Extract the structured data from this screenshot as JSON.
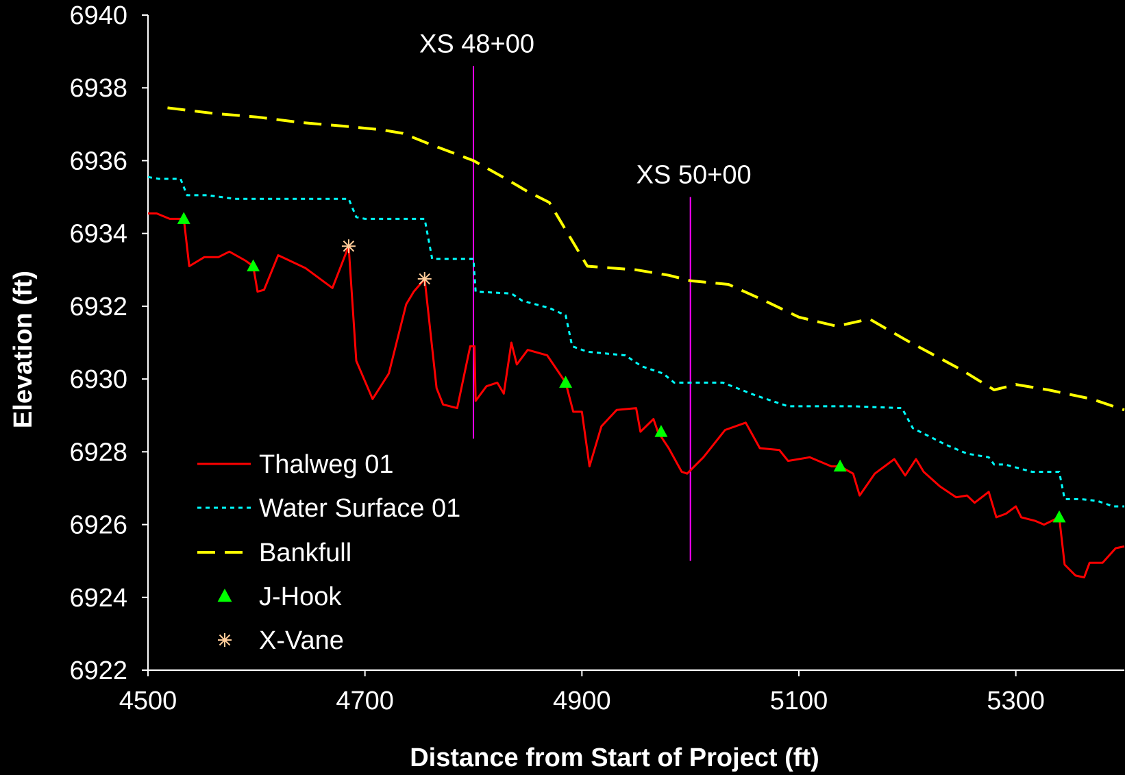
{
  "chart_data": {
    "type": "line",
    "title": "",
    "xlabel": "Distance from Start of Project (ft)",
    "ylabel": "Elevation (ft)",
    "xlim": [
      4500,
      5400
    ],
    "ylim": [
      6922,
      6940
    ],
    "x_ticks": [
      4500,
      4700,
      4900,
      5100,
      5300
    ],
    "y_ticks": [
      6922,
      6924,
      6926,
      6928,
      6930,
      6932,
      6934,
      6936,
      6938,
      6940
    ],
    "x_tick_labels": [
      "4500",
      "4700",
      "4900",
      "5100",
      "5300"
    ],
    "y_tick_labels": [
      "6922",
      "6924",
      "6926",
      "6928",
      "6930",
      "6932",
      "6934",
      "6936",
      "6938",
      "6940"
    ],
    "grid": false,
    "legend_position": "bottom-left",
    "background": "#000000",
    "series": [
      {
        "name": "Thalweg 01",
        "style": "solid",
        "color": "#ff0000",
        "points": [
          [
            4500,
            6934.55
          ],
          [
            4508,
            6934.55
          ],
          [
            4520,
            6934.4
          ],
          [
            4533,
            6934.4
          ],
          [
            4538,
            6933.1
          ],
          [
            4552,
            6933.35
          ],
          [
            4565,
            6933.35
          ],
          [
            4575,
            6933.5
          ],
          [
            4590,
            6933.25
          ],
          [
            4597,
            6933.1
          ],
          [
            4601,
            6932.4
          ],
          [
            4607,
            6932.45
          ],
          [
            4620,
            6933.4
          ],
          [
            4645,
            6933.05
          ],
          [
            4670,
            6932.5
          ],
          [
            4685,
            6933.65
          ],
          [
            4692,
            6930.5
          ],
          [
            4707,
            6929.45
          ],
          [
            4722,
            6930.15
          ],
          [
            4738,
            6932.05
          ],
          [
            4745,
            6932.4
          ],
          [
            4755,
            6932.75
          ],
          [
            4766,
            6929.75
          ],
          [
            4772,
            6929.3
          ],
          [
            4785,
            6929.2
          ],
          [
            4797,
            6930.9
          ],
          [
            4801,
            6930.9
          ],
          [
            4802,
            6929.4
          ],
          [
            4812,
            6929.8
          ],
          [
            4822,
            6929.9
          ],
          [
            4828,
            6929.6
          ],
          [
            4835,
            6931.0
          ],
          [
            4840,
            6930.4
          ],
          [
            4850,
            6930.8
          ],
          [
            4868,
            6930.65
          ],
          [
            4885,
            6929.9
          ],
          [
            4892,
            6929.1
          ],
          [
            4900,
            6929.1
          ],
          [
            4907,
            6927.6
          ],
          [
            4918,
            6928.7
          ],
          [
            4932,
            6929.15
          ],
          [
            4950,
            6929.2
          ],
          [
            4954,
            6928.55
          ],
          [
            4966,
            6928.9
          ],
          [
            4970,
            6928.55
          ],
          [
            4980,
            6928.1
          ],
          [
            4992,
            6927.45
          ],
          [
            4997,
            6927.4
          ],
          [
            5012,
            6927.85
          ],
          [
            5032,
            6928.6
          ],
          [
            5051,
            6928.8
          ],
          [
            5064,
            6928.1
          ],
          [
            5082,
            6928.05
          ],
          [
            5090,
            6927.75
          ],
          [
            5110,
            6927.85
          ],
          [
            5130,
            6927.6
          ],
          [
            5138,
            6927.6
          ],
          [
            5150,
            6927.4
          ],
          [
            5156,
            6926.8
          ],
          [
            5170,
            6927.4
          ],
          [
            5188,
            6927.8
          ],
          [
            5198,
            6927.35
          ],
          [
            5208,
            6927.8
          ],
          [
            5215,
            6927.45
          ],
          [
            5230,
            6927.05
          ],
          [
            5245,
            6926.75
          ],
          [
            5255,
            6926.8
          ],
          [
            5262,
            6926.6
          ],
          [
            5275,
            6926.9
          ],
          [
            5282,
            6926.2
          ],
          [
            5291,
            6926.3
          ],
          [
            5300,
            6926.5
          ],
          [
            5305,
            6926.2
          ],
          [
            5318,
            6926.1
          ],
          [
            5326,
            6926.0
          ],
          [
            5340,
            6926.2
          ],
          [
            5345,
            6924.9
          ],
          [
            5355,
            6924.6
          ],
          [
            5363,
            6924.55
          ],
          [
            5368,
            6924.95
          ],
          [
            5380,
            6924.95
          ],
          [
            5392,
            6925.35
          ],
          [
            5400,
            6925.4
          ]
        ]
      },
      {
        "name": "Water Surface 01",
        "style": "dotted",
        "color": "#00ffff",
        "points": [
          [
            4500,
            6935.55
          ],
          [
            4510,
            6935.5
          ],
          [
            4530,
            6935.5
          ],
          [
            4536,
            6935.05
          ],
          [
            4555,
            6935.05
          ],
          [
            4580,
            6934.95
          ],
          [
            4620,
            6934.95
          ],
          [
            4675,
            6934.95
          ],
          [
            4685,
            6934.95
          ],
          [
            4692,
            6934.45
          ],
          [
            4700,
            6934.4
          ],
          [
            4730,
            6934.4
          ],
          [
            4755,
            6934.4
          ],
          [
            4762,
            6933.3
          ],
          [
            4790,
            6933.3
          ],
          [
            4800,
            6933.3
          ],
          [
            4802,
            6932.4
          ],
          [
            4835,
            6932.35
          ],
          [
            4845,
            6932.15
          ],
          [
            4870,
            6931.95
          ],
          [
            4885,
            6931.75
          ],
          [
            4891,
            6930.9
          ],
          [
            4905,
            6930.75
          ],
          [
            4940,
            6930.65
          ],
          [
            4955,
            6930.35
          ],
          [
            4975,
            6930.15
          ],
          [
            4985,
            6929.9
          ],
          [
            5030,
            6929.9
          ],
          [
            5060,
            6929.55
          ],
          [
            5080,
            6929.35
          ],
          [
            5090,
            6929.25
          ],
          [
            5150,
            6929.25
          ],
          [
            5195,
            6929.2
          ],
          [
            5205,
            6928.65
          ],
          [
            5235,
            6928.2
          ],
          [
            5255,
            6927.95
          ],
          [
            5275,
            6927.85
          ],
          [
            5280,
            6927.65
          ],
          [
            5290,
            6927.65
          ],
          [
            5315,
            6927.45
          ],
          [
            5340,
            6927.45
          ],
          [
            5345,
            6926.7
          ],
          [
            5360,
            6926.7
          ],
          [
            5375,
            6926.65
          ],
          [
            5390,
            6926.5
          ],
          [
            5400,
            6926.5
          ]
        ]
      },
      {
        "name": "Bankfull",
        "style": "dashed",
        "color": "#ffff00",
        "points": [
          [
            4518,
            6937.45
          ],
          [
            4560,
            6937.3
          ],
          [
            4600,
            6937.2
          ],
          [
            4640,
            6937.05
          ],
          [
            4680,
            6936.95
          ],
          [
            4715,
            6936.85
          ],
          [
            4735,
            6936.75
          ],
          [
            4760,
            6936.45
          ],
          [
            4800,
            6936.0
          ],
          [
            4830,
            6935.5
          ],
          [
            4850,
            6935.15
          ],
          [
            4870,
            6934.85
          ],
          [
            4885,
            6934.1
          ],
          [
            4905,
            6933.1
          ],
          [
            4950,
            6933.0
          ],
          [
            4980,
            6932.85
          ],
          [
            5000,
            6932.7
          ],
          [
            5035,
            6932.6
          ],
          [
            5065,
            6932.2
          ],
          [
            5100,
            6931.7
          ],
          [
            5135,
            6931.45
          ],
          [
            5165,
            6931.65
          ],
          [
            5200,
            6931.05
          ],
          [
            5250,
            6930.25
          ],
          [
            5280,
            6929.7
          ],
          [
            5300,
            6929.85
          ],
          [
            5330,
            6929.7
          ],
          [
            5370,
            6929.45
          ],
          [
            5400,
            6929.15
          ]
        ]
      },
      {
        "name": "J-Hook",
        "style": "marker-triangle",
        "color": "#00ff00",
        "points": [
          [
            4533,
            6934.4
          ],
          [
            4597,
            6933.1
          ],
          [
            4885,
            6929.9
          ],
          [
            4973,
            6928.55
          ],
          [
            5138,
            6927.6
          ],
          [
            5340,
            6926.2
          ]
        ]
      },
      {
        "name": "X-Vane",
        "style": "marker-asterisk",
        "color": "#ffcc99",
        "points": [
          [
            4685,
            6933.65
          ],
          [
            4755,
            6932.75
          ]
        ]
      }
    ],
    "annotations": [
      {
        "label": "XS 48+00",
        "x": 4800,
        "y_from": 6927.0,
        "y_to": 6938.6,
        "color": "#ff00ff"
      },
      {
        "label": "XS 50+00",
        "x": 5000,
        "y_from": 6925.0,
        "y_to": 6935.0,
        "color": "#ff00ff"
      }
    ]
  }
}
